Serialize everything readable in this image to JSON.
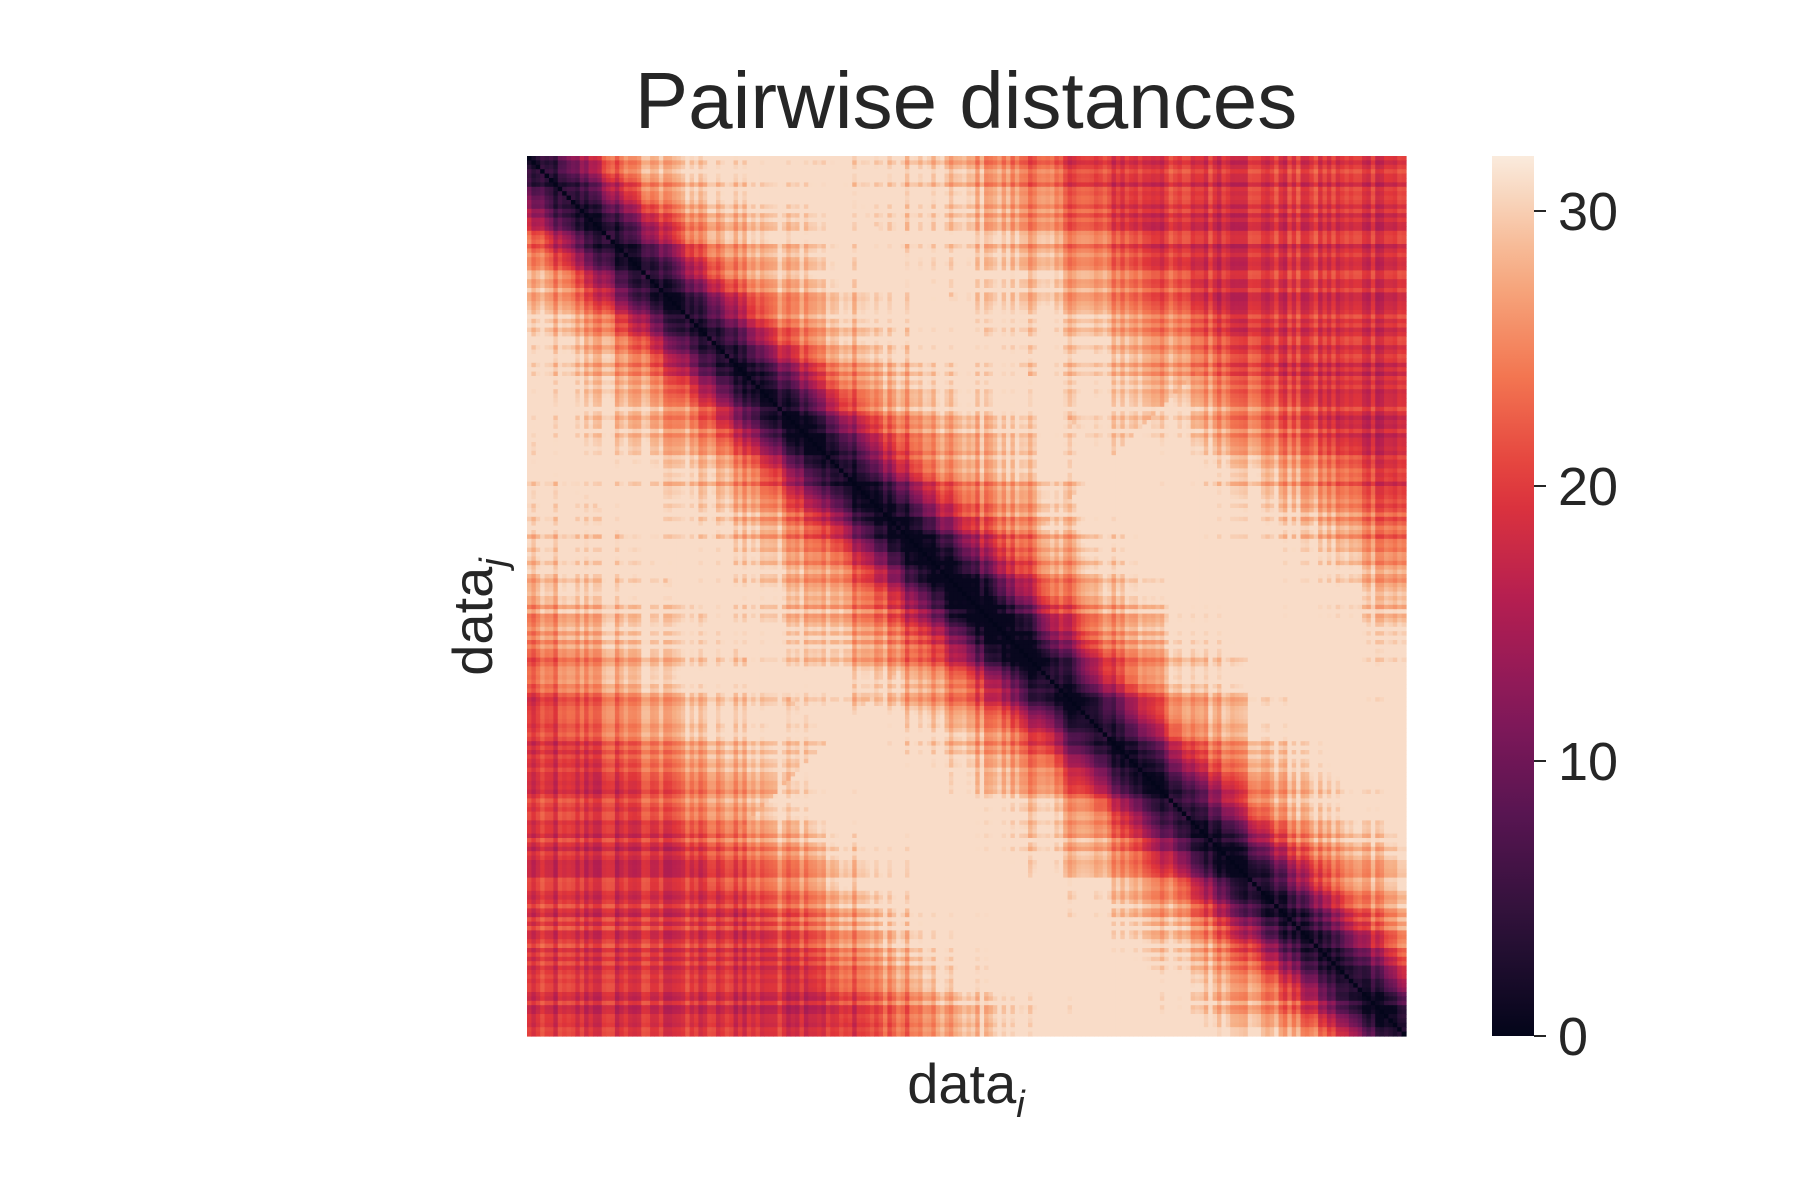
{
  "chart_data": {
    "type": "heatmap",
    "title": "Pairwise distances",
    "xlabel": {
      "base": "data",
      "subscript": "i"
    },
    "ylabel": {
      "base": "data",
      "subscript": "j"
    },
    "n_points": 200,
    "colormap": "rocket",
    "colorbar": {
      "vmin": 0,
      "vmax": 32,
      "ticks": [
        0,
        10,
        20,
        30
      ],
      "tick_labels": [
        "0",
        "10",
        "20",
        "30"
      ]
    },
    "x_ticks_shown": false,
    "y_ticks_shown": false,
    "structure": {
      "diagonal_value": 0,
      "max_distance": 31,
      "high_blocks": [
        {
          "rows_frac": [
            0.55,
            1.0
          ],
          "cols_frac": [
            0.45,
            0.8
          ],
          "approx_value": 29
        },
        {
          "rows_frac": [
            0.35,
            0.8
          ],
          "cols_frac": [
            0.65,
            1.0
          ],
          "approx_value": 29
        }
      ]
    }
  }
}
